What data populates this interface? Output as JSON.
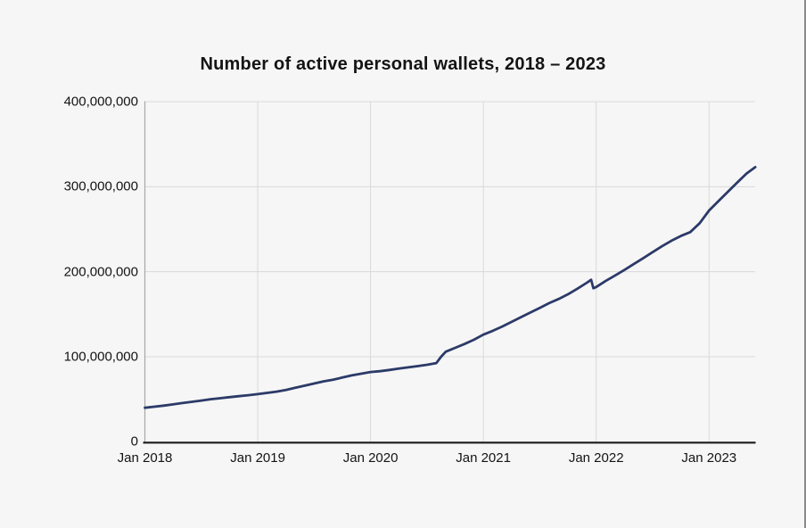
{
  "window": {
    "background": "#f6f6f6"
  },
  "colors": {
    "grid": "#d9d9d9",
    "y_axis_line": "#a8a8a8",
    "x_axis_line": "#1a1a1a",
    "text": "#141414",
    "line": "#2c3a68",
    "background": "#f6f6f6"
  },
  "chart_data": {
    "type": "line",
    "title": "Number of active personal wallets, 2018 – 2023",
    "xlabel": "",
    "ylabel": "",
    "grid": true,
    "legend_visible": false,
    "xlim": [
      2018,
      2023.41
    ],
    "ylim": [
      0,
      400000000
    ],
    "x_ticks": [
      {
        "label": "Jan 2018",
        "x": 2018
      },
      {
        "label": "Jan 2019",
        "x": 2019
      },
      {
        "label": "Jan 2020",
        "x": 2020
      },
      {
        "label": "Jan 2021",
        "x": 2021
      },
      {
        "label": "Jan 2022",
        "x": 2022
      },
      {
        "label": "Jan 2023",
        "x": 2023
      }
    ],
    "y_ticks": [
      {
        "label": "0",
        "value": 0
      },
      {
        "label": "100,000,000",
        "value": 100000000
      },
      {
        "label": "200,000,000",
        "value": 200000000
      },
      {
        "label": "300,000,000",
        "value": 300000000
      },
      {
        "label": "400,000,000",
        "value": 400000000
      }
    ],
    "series": [
      {
        "name": "Active personal wallets",
        "color": "#2c3a68",
        "points": [
          [
            2018.0,
            40000000
          ],
          [
            2018.083,
            41200000
          ],
          [
            2018.167,
            42500000
          ],
          [
            2018.25,
            44000000
          ],
          [
            2018.333,
            45500000
          ],
          [
            2018.417,
            47000000
          ],
          [
            2018.5,
            48500000
          ],
          [
            2018.583,
            50000000
          ],
          [
            2018.667,
            51200000
          ],
          [
            2018.75,
            52500000
          ],
          [
            2018.833,
            53600000
          ],
          [
            2018.917,
            54800000
          ],
          [
            2019.0,
            56000000
          ],
          [
            2019.083,
            57500000
          ],
          [
            2019.167,
            59000000
          ],
          [
            2019.25,
            61000000
          ],
          [
            2019.333,
            63500000
          ],
          [
            2019.417,
            66000000
          ],
          [
            2019.5,
            68500000
          ],
          [
            2019.583,
            71000000
          ],
          [
            2019.667,
            73000000
          ],
          [
            2019.75,
            75500000
          ],
          [
            2019.833,
            78000000
          ],
          [
            2019.917,
            80000000
          ],
          [
            2020.0,
            82000000
          ],
          [
            2020.083,
            83000000
          ],
          [
            2020.167,
            84500000
          ],
          [
            2020.25,
            86000000
          ],
          [
            2020.333,
            87500000
          ],
          [
            2020.417,
            89000000
          ],
          [
            2020.5,
            90500000
          ],
          [
            2020.583,
            92500000
          ],
          [
            2020.625,
            100000000
          ],
          [
            2020.667,
            106000000
          ],
          [
            2020.75,
            110500000
          ],
          [
            2020.833,
            115000000
          ],
          [
            2020.917,
            120000000
          ],
          [
            2021.0,
            126000000
          ],
          [
            2021.083,
            130500000
          ],
          [
            2021.167,
            135500000
          ],
          [
            2021.25,
            141000000
          ],
          [
            2021.333,
            146500000
          ],
          [
            2021.417,
            152000000
          ],
          [
            2021.5,
            157500000
          ],
          [
            2021.583,
            163000000
          ],
          [
            2021.667,
            168000000
          ],
          [
            2021.75,
            173500000
          ],
          [
            2021.833,
            180000000
          ],
          [
            2021.917,
            187000000
          ],
          [
            2021.955,
            190500000
          ],
          [
            2021.975,
            180500000
          ],
          [
            2022.0,
            182000000
          ],
          [
            2022.083,
            189000000
          ],
          [
            2022.167,
            195500000
          ],
          [
            2022.25,
            202000000
          ],
          [
            2022.333,
            209000000
          ],
          [
            2022.417,
            216000000
          ],
          [
            2022.5,
            223000000
          ],
          [
            2022.583,
            230000000
          ],
          [
            2022.667,
            236500000
          ],
          [
            2022.75,
            242000000
          ],
          [
            2022.833,
            246500000
          ],
          [
            2022.917,
            257000000
          ],
          [
            2023.0,
            272000000
          ],
          [
            2023.083,
            283000000
          ],
          [
            2023.167,
            294000000
          ],
          [
            2023.25,
            305000000
          ],
          [
            2023.333,
            315500000
          ],
          [
            2023.41,
            323000000
          ]
        ]
      }
    ]
  }
}
